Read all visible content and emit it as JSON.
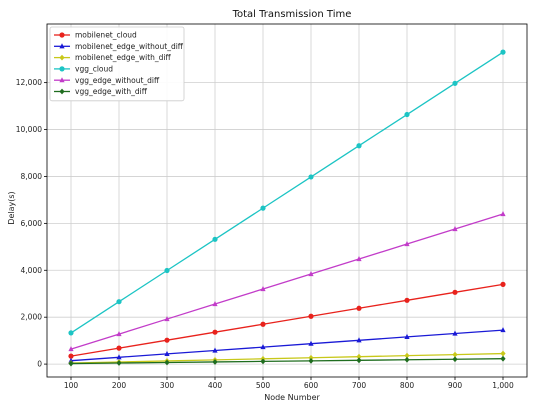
{
  "chart_data": {
    "type": "line",
    "title": "Total Transmission Time",
    "xlabel": "Node Number",
    "ylabel": "Delay(s)",
    "x": [
      100,
      200,
      300,
      400,
      500,
      600,
      700,
      800,
      900,
      1000
    ],
    "x_tick_labels": [
      "100",
      "200",
      "300",
      "400",
      "500",
      "600",
      "700",
      "800",
      "900",
      "1,000"
    ],
    "xlim": [
      50,
      1050
    ],
    "ylim": [
      -550,
      14500
    ],
    "y_ticks": [
      0,
      2000,
      4000,
      6000,
      8000,
      10000,
      12000
    ],
    "y_tick_labels": [
      "0",
      "2,000",
      "4,000",
      "6,000",
      "8,000",
      "10,000",
      "12,000"
    ],
    "grid": true,
    "legend_position": "top-left",
    "series": [
      {
        "name": "mobilenet_cloud",
        "color": "#e8221c",
        "marker": "circle",
        "values": [
          340,
          680,
          1020,
          1360,
          1700,
          2040,
          2380,
          2720,
          3060,
          3400
        ]
      },
      {
        "name": "mobilenet_edge_without_diff",
        "color": "#1a1ad6",
        "marker": "triangle",
        "values": [
          145,
          290,
          435,
          580,
          725,
          870,
          1015,
          1160,
          1305,
          1450
        ]
      },
      {
        "name": "mobilenet_edge_with_diff",
        "color": "#c8c81a",
        "marker": "diamond",
        "values": [
          45,
          90,
          135,
          180,
          225,
          270,
          315,
          360,
          405,
          450
        ]
      },
      {
        "name": "vgg_cloud",
        "color": "#1cc4c4",
        "marker": "circle",
        "values": [
          1330,
          2660,
          3990,
          5320,
          6650,
          7980,
          9310,
          10640,
          11970,
          13300
        ]
      },
      {
        "name": "vgg_edge_without_diff",
        "color": "#c23cc9",
        "marker": "triangle",
        "values": [
          640,
          1280,
          1920,
          2560,
          3200,
          3840,
          4480,
          5120,
          5760,
          6400
        ]
      },
      {
        "name": "vgg_edge_with_diff",
        "color": "#1f6d1f",
        "marker": "diamond",
        "values": [
          23,
          46,
          69,
          92,
          115,
          138,
          161,
          184,
          207,
          230
        ]
      }
    ]
  }
}
